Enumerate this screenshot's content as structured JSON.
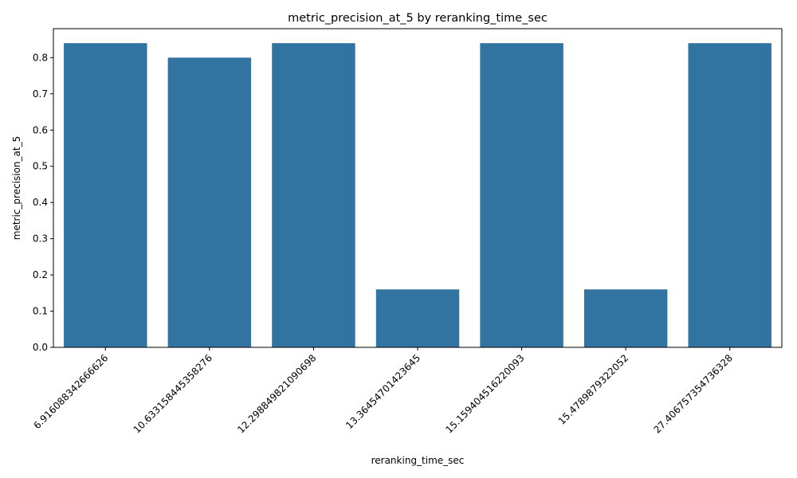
{
  "chart_data": {
    "type": "bar",
    "title": "metric_precision_at_5 by reranking_time_sec",
    "xlabel": "reranking_time_sec",
    "ylabel": "metric_precision_at_5",
    "categories": [
      "6.916088342666626",
      "10.63315844535827​6",
      "12.29884982109069​8",
      "13.3645470142364​5",
      "15.15940451622009​3",
      "15.4789879322052",
      "27.40675735473632​8"
    ],
    "values": [
      0.84,
      0.8,
      0.84,
      0.16,
      0.84,
      0.16,
      0.84
    ],
    "ylim": [
      0,
      0.88
    ],
    "yticks": [
      "0.0",
      "0.1",
      "0.2",
      "0.3",
      "0.4",
      "0.5",
      "0.6",
      "0.7",
      "0.8"
    ],
    "grid": false,
    "bar_color": "#3274a1"
  }
}
